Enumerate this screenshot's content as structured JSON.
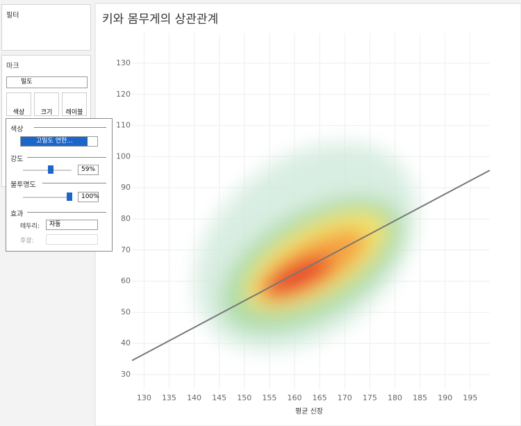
{
  "sidebar": {
    "filters_title": "필터",
    "marks_title": "마크",
    "mark_type": "밀도",
    "buttons": [
      "색상",
      "크기",
      "레이블"
    ]
  },
  "popup": {
    "color_label": "색상",
    "color_value": "고밀도 연한...",
    "intensity_label": "강도",
    "intensity_value": "59%",
    "opacity_label": "불투명도",
    "opacity_value": "100%",
    "effects_label": "효과",
    "border_label": "테두리:",
    "border_value": "자동",
    "halo_label": "후광:"
  },
  "chart_data": {
    "type": "density",
    "title": "키와 몸무게의 상관관계",
    "x_label": "평균 신장",
    "xlim": [
      127.6,
      198.9
    ],
    "xticks": [
      130,
      135,
      140,
      145,
      150,
      155,
      160,
      165,
      170,
      175,
      180,
      185,
      190,
      195
    ],
    "ylim": [
      25.3,
      139.6
    ],
    "yticks": [
      30,
      40,
      50,
      60,
      70,
      80,
      90,
      100,
      110,
      120,
      130
    ],
    "grid": true,
    "trend_line": {
      "color": "#777777",
      "x": [
        127.6,
        198.9
      ],
      "y": [
        34.5,
        95.6
      ]
    }
  }
}
